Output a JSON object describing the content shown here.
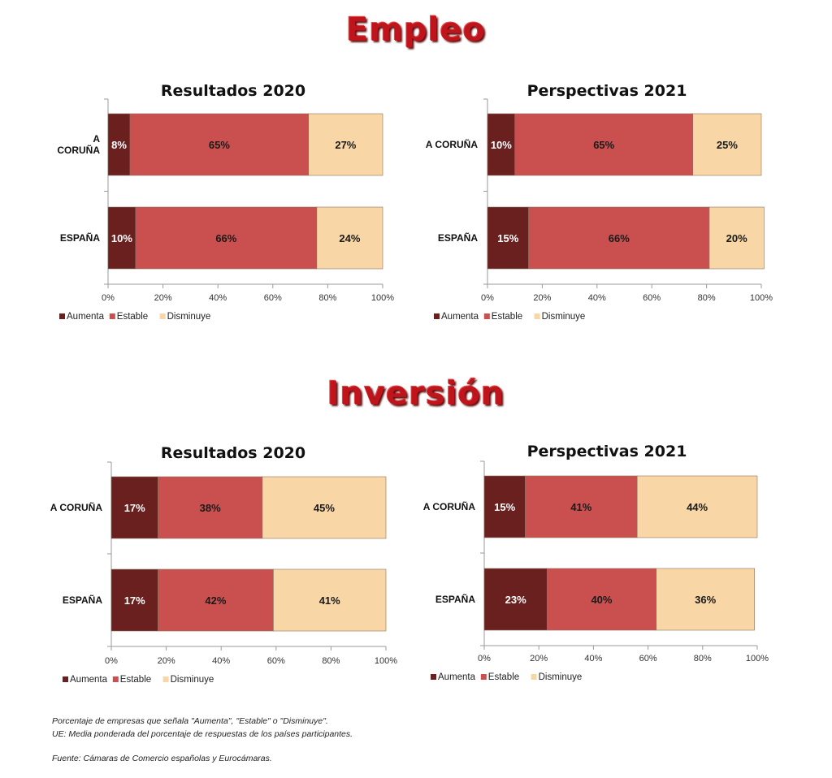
{
  "titles": {
    "empleo": "Empleo",
    "inversion": "Inversión"
  },
  "notes": {
    "line1": "Porcentaje de empresas que señala  \"Aumenta\", \"Estable\" o \"Disminuye\".",
    "line2": "UE: Media ponderada del porcentaje de respuestas de los países participantes.",
    "line3": "Fuente: Cámaras de Comercio españolas y Eurocámaras."
  },
  "chart_data": [
    {
      "type": "bar",
      "orientation": "horizontal",
      "stacked": true,
      "section": "Empleo",
      "title": "Resultados 2020",
      "categories": [
        "A CORUÑA",
        "ESPAÑA"
      ],
      "category_lines": [
        [
          "A",
          "CORUÑA"
        ],
        [
          "ESPAÑA"
        ]
      ],
      "series": [
        {
          "name": "Aumenta",
          "values": [
            8,
            10
          ],
          "color": "#6b2020",
          "label_color": "#ffffff"
        },
        {
          "name": "Estable",
          "values": [
            65,
            66
          ],
          "color": "#c9504f",
          "label_color": "#1a1a1a"
        },
        {
          "name": "Disminuye",
          "values": [
            27,
            24
          ],
          "color": "#f8d6a6",
          "label_color": "#1a1a1a"
        }
      ],
      "xlim": [
        0,
        100
      ],
      "xticks": [
        "0%",
        "20%",
        "40%",
        "60%",
        "80%",
        "100%"
      ],
      "legend": "bottom-left",
      "grid": false
    },
    {
      "type": "bar",
      "orientation": "horizontal",
      "stacked": true,
      "section": "Empleo",
      "title": "Perspectivas 2021",
      "categories": [
        "A CORUÑA",
        "ESPAÑA"
      ],
      "category_lines": [
        [
          "A CORUÑA"
        ],
        [
          "ESPAÑA"
        ]
      ],
      "series": [
        {
          "name": "Aumenta",
          "values": [
            10,
            15
          ],
          "color": "#6b2020",
          "label_color": "#ffffff"
        },
        {
          "name": "Estable",
          "values": [
            65,
            66
          ],
          "color": "#c9504f",
          "label_color": "#1a1a1a"
        },
        {
          "name": "Disminuye",
          "values": [
            25,
            20
          ],
          "color": "#f8d6a6",
          "label_color": "#1a1a1a"
        }
      ],
      "xlim": [
        0,
        100
      ],
      "xticks": [
        "0%",
        "20%",
        "40%",
        "60%",
        "80%",
        "100%"
      ],
      "legend": "bottom-left",
      "grid": false
    },
    {
      "type": "bar",
      "orientation": "horizontal",
      "stacked": true,
      "section": "Inversión",
      "title": "Resultados 2020",
      "categories": [
        "A CORUÑA",
        "ESPAÑA"
      ],
      "category_lines": [
        [
          "A CORUÑA"
        ],
        [
          "ESPAÑA"
        ]
      ],
      "series": [
        {
          "name": "Aumenta",
          "values": [
            17,
            17
          ],
          "color": "#6b2020",
          "label_color": "#ffffff"
        },
        {
          "name": "Estable",
          "values": [
            38,
            42
          ],
          "color": "#c9504f",
          "label_color": "#1a1a1a"
        },
        {
          "name": "Disminuye",
          "values": [
            45,
            41
          ],
          "color": "#f8d6a6",
          "label_color": "#1a1a1a"
        }
      ],
      "xlim": [
        0,
        100
      ],
      "xticks": [
        "0%",
        "20%",
        "40%",
        "60%",
        "80%",
        "100%"
      ],
      "legend": "bottom-left",
      "grid": false
    },
    {
      "type": "bar",
      "orientation": "horizontal",
      "stacked": true,
      "section": "Inversión",
      "title": "Perspectivas 2021",
      "categories": [
        "A CORUÑA",
        "ESPAÑA"
      ],
      "category_lines": [
        [
          "A CORUÑA"
        ],
        [
          "ESPAÑA"
        ]
      ],
      "series": [
        {
          "name": "Aumenta",
          "values": [
            15,
            23
          ],
          "color": "#6b2020",
          "label_color": "#ffffff"
        },
        {
          "name": "Estable",
          "values": [
            41,
            40
          ],
          "color": "#c9504f",
          "label_color": "#1a1a1a"
        },
        {
          "name": "Disminuye",
          "values": [
            44,
            36
          ],
          "color": "#f8d6a6",
          "label_color": "#1a1a1a"
        }
      ],
      "xlim": [
        0,
        100
      ],
      "xticks": [
        "0%",
        "20%",
        "40%",
        "60%",
        "80%",
        "100%"
      ],
      "legend": "bottom-left",
      "grid": false
    }
  ]
}
